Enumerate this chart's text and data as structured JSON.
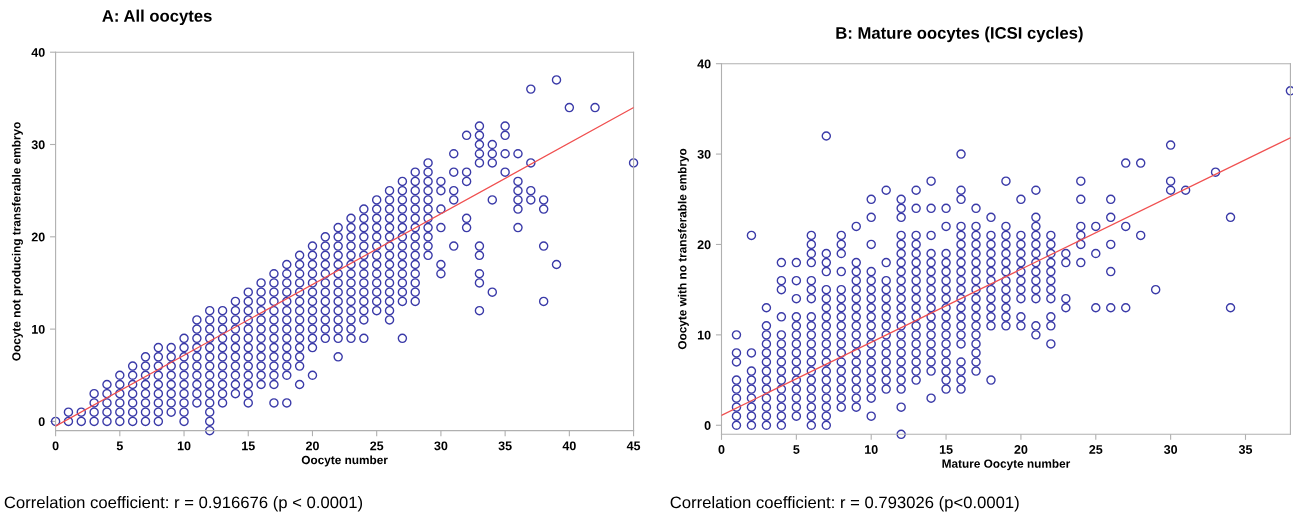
{
  "chart_data": [
    {
      "type": "scatter",
      "title": "A: All oocytes",
      "xlabel": "Oocyte number",
      "ylabel": "Oocyte not producing transferable embryo",
      "xlim": [
        0,
        45
      ],
      "ylim": [
        -1,
        40
      ],
      "xticks": [
        0,
        5,
        10,
        15,
        20,
        25,
        30,
        35,
        40,
        45
      ],
      "yticks": [
        0,
        10,
        20,
        30,
        40
      ],
      "annotations": [
        "Correlation coefficient: r = 0.916676 (p < 0.0001)"
      ],
      "series": [
        {
          "marker": "circle",
          "color": "#3a3aa8",
          "x": [
            0,
            1,
            1,
            2,
            2,
            3,
            3,
            3,
            3,
            4,
            4,
            4,
            4,
            4,
            5,
            5,
            5,
            5,
            5,
            5,
            6,
            6,
            6,
            6,
            6,
            6,
            6,
            7,
            7,
            7,
            7,
            7,
            7,
            7,
            7,
            8,
            8,
            8,
            8,
            8,
            8,
            8,
            8,
            8,
            9,
            9,
            9,
            9,
            9,
            9,
            9,
            9,
            10,
            10,
            10,
            10,
            10,
            10,
            10,
            10,
            10,
            10,
            11,
            11,
            11,
            11,
            11,
            11,
            11,
            11,
            11,
            11,
            12,
            12,
            12,
            12,
            12,
            12,
            12,
            12,
            12,
            12,
            12,
            12,
            12,
            12,
            13,
            13,
            13,
            13,
            13,
            13,
            13,
            13,
            13,
            13,
            13,
            14,
            14,
            14,
            14,
            14,
            14,
            14,
            14,
            14,
            14,
            14,
            15,
            15,
            15,
            15,
            15,
            15,
            15,
            15,
            15,
            15,
            15,
            15,
            15,
            16,
            16,
            16,
            16,
            16,
            16,
            16,
            16,
            16,
            16,
            16,
            16,
            17,
            17,
            17,
            17,
            17,
            17,
            17,
            17,
            17,
            17,
            17,
            17,
            17,
            17,
            18,
            18,
            18,
            18,
            18,
            18,
            18,
            18,
            18,
            18,
            18,
            18,
            18,
            18,
            19,
            19,
            19,
            19,
            19,
            19,
            19,
            19,
            19,
            19,
            19,
            19,
            19,
            19,
            20,
            20,
            20,
            20,
            20,
            20,
            20,
            20,
            20,
            20,
            20,
            20,
            20,
            21,
            21,
            21,
            21,
            21,
            21,
            21,
            21,
            21,
            21,
            21,
            21,
            22,
            22,
            22,
            22,
            22,
            22,
            22,
            22,
            22,
            22,
            22,
            22,
            22,
            22,
            23,
            23,
            23,
            23,
            23,
            23,
            23,
            23,
            23,
            23,
            23,
            23,
            23,
            23,
            24,
            24,
            24,
            24,
            24,
            24,
            24,
            24,
            24,
            24,
            24,
            24,
            24,
            24,
            25,
            25,
            25,
            25,
            25,
            25,
            25,
            25,
            25,
            25,
            25,
            25,
            25,
            26,
            26,
            26,
            26,
            26,
            26,
            26,
            26,
            26,
            26,
            26,
            26,
            26,
            26,
            26,
            27,
            27,
            27,
            27,
            27,
            27,
            27,
            27,
            27,
            27,
            27,
            27,
            27,
            27,
            27,
            28,
            28,
            28,
            28,
            28,
            28,
            28,
            28,
            28,
            28,
            28,
            28,
            28,
            28,
            28,
            29,
            29,
            29,
            29,
            29,
            29,
            29,
            29,
            29,
            29,
            29,
            30,
            30,
            30,
            30,
            30,
            30,
            31,
            31,
            31,
            31,
            31,
            32,
            32,
            32,
            32,
            32,
            33,
            33,
            33,
            33,
            33,
            33,
            33,
            33,
            33,
            33,
            34,
            34,
            34,
            34,
            34,
            35,
            35,
            35,
            35,
            36,
            36,
            36,
            36,
            36,
            36,
            37,
            37,
            37,
            37,
            38,
            38,
            38,
            38,
            39,
            39,
            40,
            42,
            45
          ],
          "values": [
            0,
            0,
            1,
            0,
            1,
            0,
            1,
            2,
            3,
            0,
            1,
            2,
            3,
            4,
            0,
            1,
            2,
            3,
            4,
            5,
            0,
            1,
            2,
            3,
            4,
            5,
            6,
            0,
            1,
            2,
            3,
            4,
            5,
            6,
            7,
            0,
            1,
            2,
            3,
            4,
            5,
            6,
            7,
            8,
            1,
            2,
            3,
            4,
            5,
            6,
            7,
            8,
            0,
            1,
            2,
            3,
            4,
            5,
            6,
            7,
            8,
            9,
            2,
            3,
            4,
            5,
            6,
            7,
            8,
            9,
            10,
            11,
            -1,
            0,
            1,
            2,
            3,
            4,
            5,
            6,
            7,
            8,
            9,
            10,
            11,
            12,
            2,
            3,
            4,
            5,
            6,
            7,
            8,
            9,
            10,
            11,
            12,
            3,
            4,
            5,
            6,
            7,
            8,
            9,
            10,
            11,
            12,
            13,
            2,
            3,
            4,
            5,
            6,
            7,
            8,
            9,
            10,
            11,
            12,
            13,
            14,
            4,
            5,
            6,
            7,
            8,
            9,
            10,
            11,
            12,
            13,
            14,
            15,
            2,
            4,
            5,
            6,
            7,
            8,
            9,
            10,
            11,
            12,
            13,
            14,
            15,
            16,
            2,
            5,
            6,
            7,
            8,
            9,
            10,
            11,
            12,
            13,
            14,
            15,
            16,
            17,
            4,
            6,
            7,
            8,
            9,
            10,
            11,
            12,
            13,
            14,
            15,
            16,
            17,
            18,
            5,
            8,
            9,
            10,
            11,
            12,
            13,
            14,
            15,
            16,
            17,
            18,
            19,
            9,
            10,
            11,
            12,
            13,
            14,
            15,
            16,
            17,
            18,
            19,
            20,
            7,
            9,
            10,
            11,
            12,
            13,
            14,
            15,
            16,
            17,
            18,
            19,
            20,
            21,
            9,
            10,
            11,
            12,
            13,
            14,
            15,
            16,
            17,
            18,
            19,
            20,
            21,
            22,
            9,
            11,
            12,
            13,
            14,
            15,
            16,
            17,
            18,
            19,
            20,
            21,
            22,
            23,
            12,
            13,
            14,
            15,
            16,
            17,
            18,
            19,
            20,
            21,
            22,
            23,
            24,
            11,
            12,
            13,
            14,
            15,
            16,
            17,
            18,
            19,
            20,
            21,
            22,
            23,
            24,
            25,
            9,
            13,
            14,
            15,
            16,
            17,
            18,
            19,
            20,
            21,
            22,
            23,
            24,
            25,
            26,
            13,
            14,
            15,
            16,
            17,
            18,
            19,
            20,
            21,
            22,
            23,
            24,
            25,
            26,
            27,
            18,
            19,
            20,
            21,
            22,
            23,
            24,
            25,
            26,
            27,
            28,
            16,
            17,
            21,
            23,
            25,
            26,
            19,
            24,
            25,
            27,
            29,
            21,
            22,
            26,
            27,
            31,
            12,
            15,
            16,
            18,
            19,
            28,
            29,
            30,
            31,
            32,
            14,
            24,
            28,
            29,
            30,
            27,
            29,
            31,
            32,
            21,
            23,
            24,
            25,
            26,
            29,
            24,
            25,
            28,
            36,
            13,
            19,
            23,
            24,
            17,
            37,
            34,
            34,
            28
          ]
        },
        {
          "type": "line",
          "marker": "none",
          "color": "#f05050",
          "x": [
            0,
            45
          ],
          "values": [
            -0.5,
            34
          ]
        }
      ]
    },
    {
      "type": "scatter",
      "title": "B: Mature oocytes (ICSI cycles)",
      "xlabel": "Mature Oocyte number",
      "ylabel": "Oocyte with no transferable embryo",
      "xlim": [
        0,
        38
      ],
      "ylim": [
        -1,
        40
      ],
      "xticks": [
        0,
        5,
        10,
        15,
        20,
        25,
        30,
        35
      ],
      "yticks": [
        0,
        10,
        20,
        30,
        40
      ],
      "annotations": [
        "Correlation coefficient: r = 0.793026 (p<0.0001)"
      ],
      "series": [
        {
          "marker": "circle",
          "color": "#3a3aa8",
          "x": [
            1,
            1,
            1,
            1,
            1,
            1,
            1,
            1,
            1,
            2,
            2,
            2,
            2,
            2,
            2,
            2,
            2,
            2,
            3,
            3,
            3,
            3,
            3,
            3,
            3,
            3,
            3,
            3,
            3,
            3,
            3,
            4,
            4,
            4,
            4,
            4,
            4,
            4,
            4,
            4,
            4,
            4,
            4,
            4,
            4,
            4,
            5,
            5,
            5,
            5,
            5,
            5,
            5,
            5,
            5,
            5,
            5,
            5,
            5,
            5,
            5,
            6,
            6,
            6,
            6,
            6,
            6,
            6,
            6,
            6,
            6,
            6,
            6,
            6,
            6,
            6,
            6,
            6,
            6,
            6,
            6,
            7,
            7,
            7,
            7,
            7,
            7,
            7,
            7,
            7,
            7,
            7,
            7,
            7,
            7,
            7,
            7,
            7,
            7,
            7,
            7,
            8,
            8,
            8,
            8,
            8,
            8,
            8,
            8,
            8,
            8,
            8,
            8,
            8,
            8,
            8,
            8,
            8,
            8,
            9,
            9,
            9,
            9,
            9,
            9,
            9,
            9,
            9,
            9,
            9,
            9,
            9,
            9,
            9,
            9,
            9,
            9,
            10,
            10,
            10,
            10,
            10,
            10,
            10,
            10,
            10,
            10,
            10,
            10,
            10,
            10,
            10,
            10,
            10,
            10,
            10,
            11,
            11,
            11,
            11,
            11,
            11,
            11,
            11,
            11,
            11,
            11,
            11,
            11,
            11,
            11,
            12,
            12,
            12,
            12,
            12,
            12,
            12,
            12,
            12,
            12,
            12,
            12,
            12,
            12,
            12,
            12,
            12,
            12,
            12,
            12,
            12,
            12,
            12,
            13,
            13,
            13,
            13,
            13,
            13,
            13,
            13,
            13,
            13,
            13,
            13,
            13,
            13,
            13,
            13,
            13,
            13,
            13,
            14,
            14,
            14,
            14,
            14,
            14,
            14,
            14,
            14,
            14,
            14,
            14,
            14,
            14,
            14,
            14,
            14,
            14,
            15,
            15,
            15,
            15,
            15,
            15,
            15,
            15,
            15,
            15,
            15,
            15,
            15,
            15,
            15,
            15,
            15,
            15,
            16,
            16,
            16,
            16,
            16,
            16,
            16,
            16,
            16,
            16,
            16,
            16,
            16,
            16,
            16,
            16,
            16,
            16,
            16,
            16,
            16,
            17,
            17,
            17,
            17,
            17,
            17,
            17,
            17,
            17,
            17,
            17,
            17,
            17,
            17,
            17,
            17,
            17,
            17,
            18,
            18,
            18,
            18,
            18,
            18,
            18,
            18,
            18,
            18,
            18,
            18,
            18,
            19,
            19,
            19,
            19,
            19,
            19,
            19,
            19,
            19,
            19,
            19,
            19,
            19,
            20,
            20,
            20,
            20,
            20,
            20,
            20,
            20,
            20,
            20,
            20,
            21,
            21,
            21,
            21,
            21,
            21,
            21,
            21,
            21,
            21,
            21,
            21,
            21,
            22,
            22,
            22,
            22,
            22,
            22,
            22,
            22,
            22,
            22,
            22,
            23,
            23,
            23,
            23,
            24,
            24,
            24,
            24,
            24,
            24,
            25,
            25,
            25,
            26,
            26,
            26,
            26,
            26,
            27,
            27,
            27,
            28,
            28,
            29,
            30,
            30,
            30,
            31,
            33,
            34,
            34,
            38
          ],
          "values": [
            0,
            1,
            2,
            3,
            4,
            5,
            7,
            8,
            10,
            0,
            1,
            2,
            3,
            4,
            5,
            6,
            8,
            21,
            0,
            1,
            2,
            3,
            4,
            5,
            6,
            7,
            8,
            9,
            10,
            11,
            13,
            0,
            1,
            2,
            3,
            4,
            5,
            6,
            7,
            8,
            9,
            10,
            12,
            15,
            16,
            18,
            1,
            2,
            3,
            4,
            5,
            6,
            7,
            8,
            9,
            10,
            11,
            12,
            14,
            16,
            18,
            0,
            1,
            2,
            3,
            4,
            5,
            6,
            7,
            8,
            9,
            10,
            11,
            12,
            14,
            15,
            16,
            18,
            19,
            20,
            21,
            0,
            1,
            2,
            3,
            4,
            5,
            6,
            7,
            8,
            9,
            10,
            11,
            12,
            13,
            14,
            15,
            17,
            18,
            19,
            32,
            2,
            3,
            4,
            5,
            6,
            7,
            8,
            9,
            10,
            11,
            12,
            13,
            14,
            15,
            17,
            19,
            20,
            21,
            2,
            3,
            4,
            5,
            6,
            7,
            8,
            9,
            10,
            11,
            12,
            13,
            14,
            15,
            16,
            17,
            18,
            22,
            1,
            3,
            4,
            5,
            6,
            7,
            8,
            9,
            10,
            11,
            12,
            13,
            14,
            15,
            16,
            17,
            20,
            23,
            25,
            4,
            5,
            6,
            7,
            8,
            9,
            10,
            11,
            12,
            13,
            14,
            15,
            16,
            18,
            26,
            -1,
            2,
            4,
            5,
            6,
            7,
            8,
            9,
            10,
            11,
            12,
            13,
            14,
            15,
            16,
            17,
            18,
            19,
            20,
            21,
            23,
            24,
            25,
            5,
            6,
            7,
            8,
            9,
            10,
            11,
            12,
            13,
            14,
            15,
            16,
            17,
            18,
            19,
            20,
            21,
            24,
            26,
            3,
            6,
            7,
            8,
            9,
            10,
            11,
            12,
            13,
            14,
            15,
            16,
            17,
            18,
            19,
            21,
            24,
            27,
            4,
            5,
            6,
            7,
            8,
            9,
            10,
            11,
            12,
            13,
            14,
            15,
            16,
            17,
            18,
            19,
            22,
            24,
            4,
            5,
            6,
            7,
            9,
            10,
            11,
            12,
            13,
            14,
            15,
            16,
            17,
            18,
            19,
            20,
            21,
            22,
            25,
            26,
            30,
            6,
            7,
            8,
            9,
            10,
            11,
            12,
            13,
            14,
            15,
            16,
            17,
            18,
            19,
            20,
            21,
            22,
            24,
            5,
            11,
            12,
            13,
            14,
            15,
            16,
            17,
            18,
            19,
            20,
            21,
            23,
            11,
            12,
            13,
            14,
            15,
            16,
            17,
            18,
            19,
            20,
            21,
            22,
            27,
            11,
            12,
            14,
            15,
            16,
            17,
            18,
            19,
            20,
            21,
            25,
            10,
            11,
            14,
            15,
            16,
            17,
            18,
            19,
            20,
            21,
            22,
            23,
            26,
            9,
            11,
            12,
            14,
            15,
            16,
            17,
            18,
            19,
            20,
            21,
            13,
            14,
            18,
            19,
            18,
            20,
            21,
            22,
            25,
            27,
            13,
            19,
            22,
            13,
            17,
            20,
            23,
            25,
            13,
            22,
            29,
            21,
            29,
            15,
            26,
            27,
            31,
            26,
            28,
            13,
            23,
            37
          ]
        },
        {
          "type": "line",
          "marker": "none",
          "color": "#f05050",
          "x": [
            0,
            38
          ],
          "values": [
            1.1,
            31.8
          ]
        }
      ]
    }
  ]
}
